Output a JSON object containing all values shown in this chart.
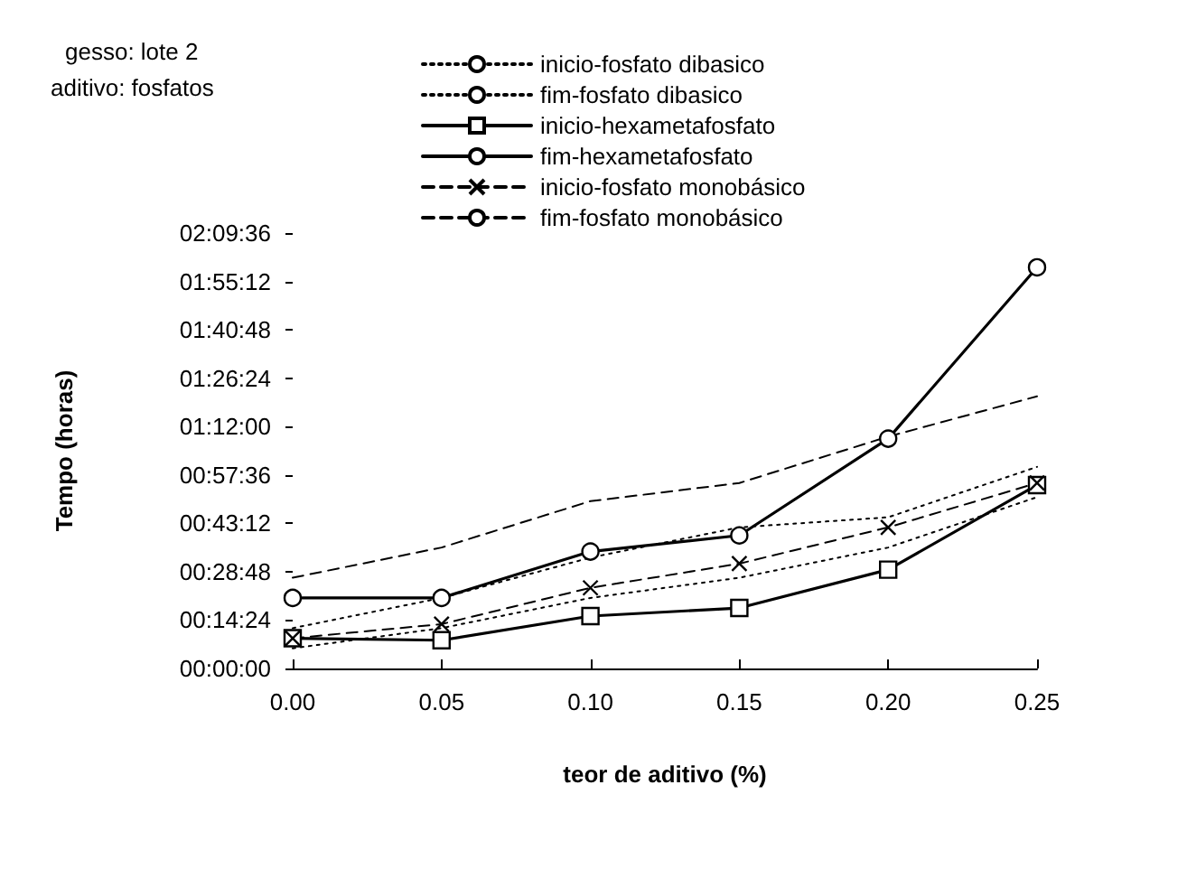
{
  "chart_data": {
    "type": "line",
    "xlabel": "teor de aditivo (%)",
    "ylabel": "Tempo (horas)",
    "annotations": [
      "gesso: lote 2",
      "aditivo: fosfatos"
    ],
    "x": [
      0,
      0.05,
      0.1,
      0.15,
      0.2,
      0.25
    ],
    "series": [
      {
        "name": "inicio-fosfato dibasico",
        "color": "#000000",
        "values": [
          0.1,
          0.2,
          0.35,
          0.45,
          0.6,
          0.85
        ],
        "line_style": "dotted",
        "marker": "none"
      },
      {
        "name": "fim-fosfato dibasico",
        "color": "#000000",
        "values": [
          0.2,
          0.35,
          0.55,
          0.7,
          0.75,
          1.0
        ],
        "line_style": "dotted",
        "marker": "none"
      },
      {
        "name": "inicio-hexametafosfato",
        "color": "#000000",
        "values": [
          0.15,
          0.14,
          0.26,
          0.3,
          0.49,
          0.91
        ],
        "line_style": "solid",
        "marker": "square"
      },
      {
        "name": "fim-hexametafosfato",
        "color": "#000000",
        "values": [
          0.35,
          0.35,
          0.58,
          0.66,
          1.14,
          1.99
        ],
        "line_style": "solid",
        "marker": "circle"
      },
      {
        "name": "inicio-fosfato monobásico",
        "color": "#000000",
        "values": [
          0.15,
          0.22,
          0.4,
          0.52,
          0.7,
          0.92
        ],
        "line_style": "dashed",
        "marker": "cross"
      },
      {
        "name": "fim-fosfato monobásico",
        "color": "#000000",
        "values": [
          0.45,
          0.6,
          0.83,
          0.92,
          1.15,
          1.35
        ],
        "line_style": "dashed",
        "marker": "none"
      }
    ],
    "xlim": [
      0,
      0.25
    ],
    "xticks": [
      {
        "value": 0,
        "label": "0.00"
      },
      {
        "value": 0.05,
        "label": "0.05"
      },
      {
        "value": 0.1,
        "label": "0.10"
      },
      {
        "value": 0.15,
        "label": "0.15"
      },
      {
        "value": 0.2,
        "label": "0.20"
      },
      {
        "value": 0.25,
        "label": "0.25"
      }
    ],
    "ylim": [
      0,
      2.16
    ],
    "yticks": [
      {
        "value": 0,
        "label": "00:00:00"
      },
      {
        "value": 0.24,
        "label": "00:14:24"
      },
      {
        "value": 0.48,
        "label": "00:28:48"
      },
      {
        "value": 0.72,
        "label": "00:43:12"
      },
      {
        "value": 0.96,
        "label": "00:57:36"
      },
      {
        "value": 1.2,
        "label": "01:12:00"
      },
      {
        "value": 1.44,
        "label": "01:26:24"
      },
      {
        "value": 1.68,
        "label": "01:40:48"
      },
      {
        "value": 1.92,
        "label": "01:55:12"
      },
      {
        "value": 2.16,
        "label": "02:09:36"
      }
    ],
    "grid": false,
    "legend": "top"
  }
}
